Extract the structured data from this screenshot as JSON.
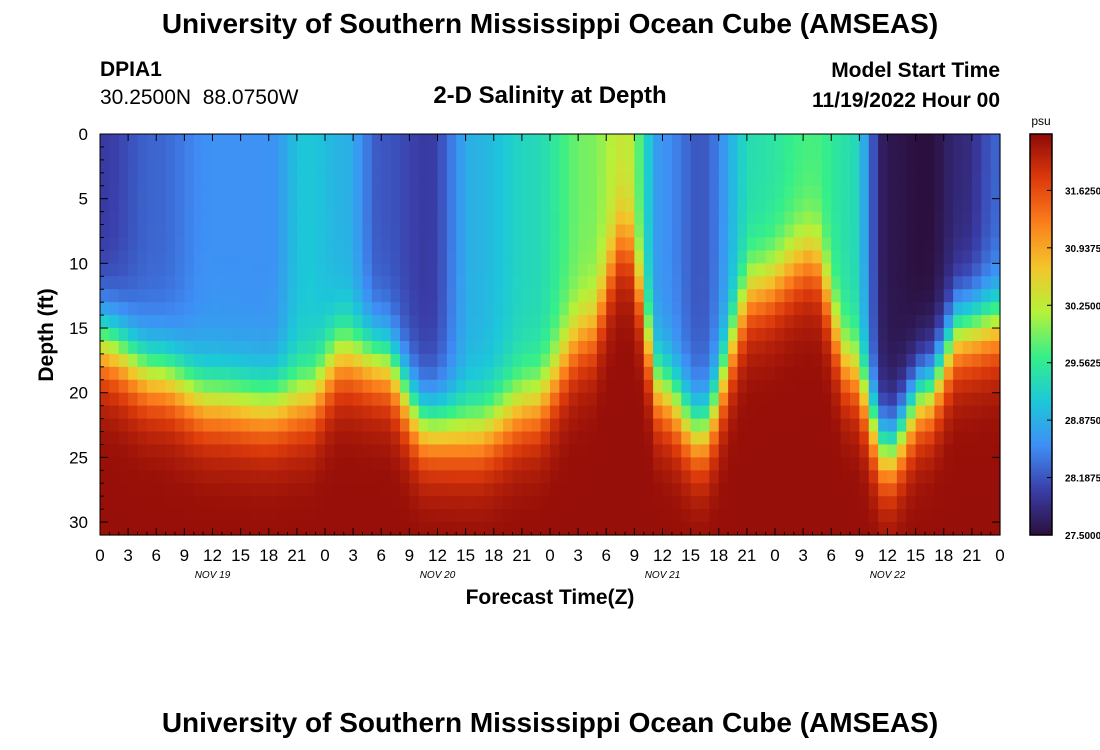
{
  "header": {
    "title": "University of Southern Mississippi Ocean Cube (AMSEAS)",
    "station_id": "DPIA1",
    "station_coords": "30.2500N  88.0750W",
    "subtitle": "2-D Salinity at Depth",
    "model_start_label": "Model Start Time",
    "model_start_value": "11/19/2022 Hour 00"
  },
  "footer": {
    "title": "University of Southern Mississippi Ocean Cube (AMSEAS)"
  },
  "chart_data": {
    "type": "heatmap",
    "title": "2-D Salinity at Depth",
    "xlabel": "Forecast Time(Z)",
    "ylabel": "Depth (ft)",
    "x_range_hours": [
      0,
      96
    ],
    "x_tick_step_hours": 3,
    "x_tick_labels": [
      "0",
      "3",
      "6",
      "9",
      "12",
      "15",
      "18",
      "21",
      "0",
      "3",
      "6",
      "9",
      "12",
      "15",
      "18",
      "21",
      "0",
      "3",
      "6",
      "9",
      "12",
      "15",
      "18",
      "21",
      "0",
      "3",
      "6",
      "9",
      "12",
      "15",
      "18",
      "21",
      "0"
    ],
    "day_labels": [
      {
        "label": "NOV 19",
        "hour": 12
      },
      {
        "label": "NOV 20",
        "hour": 36
      },
      {
        "label": "NOV 21",
        "hour": 60
      },
      {
        "label": "NOV 22",
        "hour": 84
      }
    ],
    "y_range_ft": [
      0,
      31
    ],
    "y_tick_labels": [
      "0",
      "5",
      "10",
      "15",
      "20",
      "25",
      "30"
    ],
    "colorbar": {
      "unit": "psu",
      "min": 27.5,
      "max": 32.3,
      "labels": [
        "31.6250",
        "30.9375",
        "30.2500",
        "29.5625",
        "28.8750",
        "28.1875",
        "27.5000"
      ],
      "colors": [
        "#2b0f3c",
        "#3a3da8",
        "#3f8ef6",
        "#1cc8d8",
        "#35ef8a",
        "#b6f13a",
        "#f3c52b",
        "#fb7f1c",
        "#dc3a0b",
        "#8f0a08"
      ]
    },
    "halocline_depth_ft": {
      "hours": [
        0,
        6,
        12,
        18,
        22,
        26,
        30,
        35,
        40,
        46,
        52,
        56,
        60,
        64,
        70,
        76,
        80,
        84,
        88,
        92,
        96
      ],
      "depth": [
        16.0,
        18.5,
        20.5,
        21,
        20.5,
        17.0,
        17.5,
        22.5,
        23.0,
        21.0,
        15.5,
        8.0,
        20.0,
        23.0,
        12.0,
        9.5,
        18.0,
        24.5,
        20.0,
        15.0,
        14.5
      ]
    },
    "surface_salinity_psu": {
      "hours": [
        0,
        6,
        12,
        18,
        22,
        26,
        30,
        35,
        40,
        46,
        52,
        56,
        60,
        64,
        70,
        76,
        80,
        84,
        88,
        92,
        96
      ],
      "value": [
        28.0,
        28.3,
        28.6,
        28.6,
        29.1,
        28.9,
        28.2,
        28.0,
        28.9,
        29.3,
        29.9,
        30.3,
        28.6,
        28.2,
        29.4,
        29.7,
        29.4,
        27.6,
        27.5,
        27.8,
        28.3
      ]
    },
    "bottom_salinity_psu": 32.1
  }
}
